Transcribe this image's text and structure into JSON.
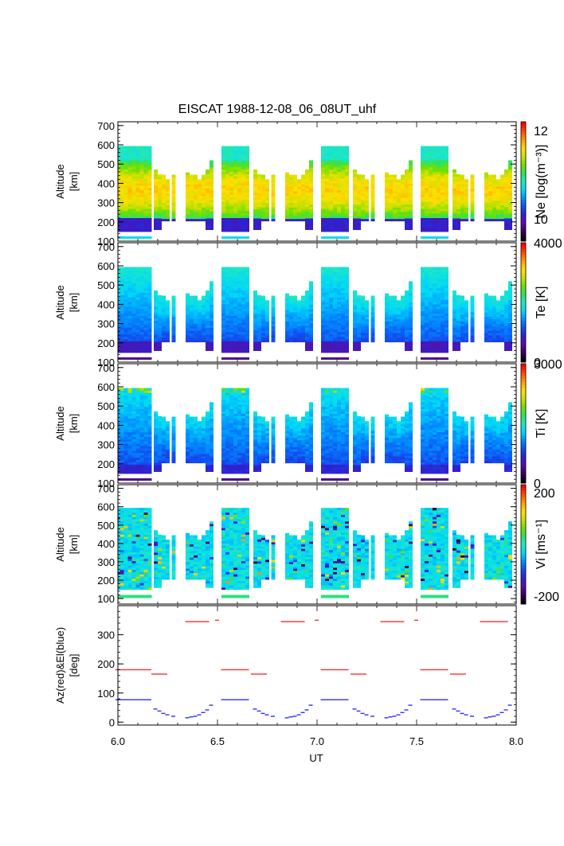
{
  "title": "EISCAT 1988-12-08_06_08UT_uhf",
  "xlabel": "UT",
  "x_ticks": [
    "6.0",
    "6.5",
    "7.0",
    "7.5",
    "8.0"
  ],
  "colors": {
    "colormap": [
      "#000000",
      "#3a0060",
      "#5a10a0",
      "#3020d0",
      "#1050f0",
      "#0090ff",
      "#00d8f8",
      "#20e8c0",
      "#30e060",
      "#70e000",
      "#c8e000",
      "#ffe000",
      "#ffa000",
      "#ff5000",
      "#ff0000"
    ],
    "az": "#ff3030",
    "el": "#3030ff"
  },
  "chart_data": [
    {
      "type": "heatmap",
      "ylabel_line1": "Altitude",
      "ylabel_line2": "[km]",
      "y_ticks": [
        "100",
        "200",
        "300",
        "400",
        "500",
        "600",
        "700"
      ],
      "ylim": [
        100,
        720
      ],
      "xlim": [
        6.0,
        8.0
      ],
      "colorbar": {
        "label": "Ne [log(m⁻³)]",
        "ticks": [
          "10",
          "12"
        ],
        "range": [
          9.5,
          12.2
        ]
      },
      "quantity": "Ne"
    },
    {
      "type": "heatmap",
      "ylabel_line1": "Altitude",
      "ylabel_line2": "[km]",
      "y_ticks": [
        "100",
        "200",
        "300",
        "400",
        "500",
        "600",
        "700"
      ],
      "ylim": [
        100,
        720
      ],
      "xlim": [
        6.0,
        8.0
      ],
      "colorbar": {
        "label": "Te [K]",
        "ticks": [
          "0",
          "4000"
        ],
        "range": [
          0,
          4000
        ]
      },
      "quantity": "Te"
    },
    {
      "type": "heatmap",
      "ylabel_line1": "Altitude",
      "ylabel_line2": "[km]",
      "y_ticks": [
        "100",
        "200",
        "300",
        "400",
        "500",
        "600",
        "700"
      ],
      "ylim": [
        100,
        720
      ],
      "xlim": [
        6.0,
        8.0
      ],
      "colorbar": {
        "label": "Ti [K]",
        "ticks": [
          "0",
          "3000"
        ],
        "range": [
          0,
          3000
        ]
      },
      "quantity": "Ti"
    },
    {
      "type": "heatmap",
      "ylabel_line1": "Altitude",
      "ylabel_line2": "[km]",
      "y_ticks": [
        "100",
        "200",
        "300",
        "400",
        "500",
        "600",
        "700"
      ],
      "ylim": [
        70,
        720
      ],
      "xlim": [
        6.0,
        8.0
      ],
      "colorbar": {
        "label": "Vi [ms⁻¹]",
        "ticks": [
          "-200",
          "200"
        ],
        "range": [
          -230,
          230
        ]
      },
      "quantity": "Vi"
    },
    {
      "type": "scatter",
      "ylabel_line1": "Az(red)&El(blue)",
      "ylabel_line2": "[deg]",
      "y_ticks": [
        "0",
        "100",
        "200",
        "300"
      ],
      "ylim": [
        -10,
        400
      ],
      "xlim": [
        6.0,
        8.0
      ],
      "series": [
        {
          "name": "Az",
          "points": [
            [
              6.0,
              180
            ],
            [
              6.02,
              180
            ],
            [
              6.04,
              180
            ],
            [
              6.06,
              180
            ],
            [
              6.08,
              180
            ],
            [
              6.1,
              180
            ],
            [
              6.12,
              180
            ],
            [
              6.14,
              180
            ],
            [
              6.16,
              180
            ],
            [
              6.18,
              165
            ],
            [
              6.2,
              165
            ],
            [
              6.22,
              165
            ],
            [
              6.24,
              165
            ],
            [
              6.35,
              345
            ],
            [
              6.37,
              345
            ],
            [
              6.39,
              345
            ],
            [
              6.41,
              345
            ],
            [
              6.43,
              345
            ],
            [
              6.45,
              345
            ],
            [
              6.5,
              350
            ],
            [
              6.53,
              180
            ],
            [
              6.55,
              180
            ],
            [
              6.57,
              180
            ],
            [
              6.59,
              180
            ],
            [
              6.61,
              180
            ],
            [
              6.63,
              180
            ],
            [
              6.65,
              180
            ],
            [
              6.68,
              165
            ],
            [
              6.7,
              165
            ],
            [
              6.72,
              165
            ],
            [
              6.74,
              165
            ],
            [
              6.83,
              345
            ],
            [
              6.85,
              345
            ],
            [
              6.87,
              345
            ],
            [
              6.89,
              345
            ],
            [
              6.91,
              345
            ],
            [
              6.93,
              345
            ],
            [
              7.0,
              350
            ],
            [
              7.03,
              180
            ],
            [
              7.05,
              180
            ],
            [
              7.07,
              180
            ],
            [
              7.09,
              180
            ],
            [
              7.11,
              180
            ],
            [
              7.13,
              180
            ],
            [
              7.15,
              180
            ],
            [
              7.18,
              165
            ],
            [
              7.2,
              165
            ],
            [
              7.22,
              165
            ],
            [
              7.24,
              165
            ],
            [
              7.33,
              345
            ],
            [
              7.35,
              345
            ],
            [
              7.37,
              345
            ],
            [
              7.39,
              345
            ],
            [
              7.41,
              345
            ],
            [
              7.43,
              345
            ],
            [
              7.5,
              350
            ],
            [
              7.53,
              180
            ],
            [
              7.55,
              180
            ],
            [
              7.57,
              180
            ],
            [
              7.59,
              180
            ],
            [
              7.61,
              180
            ],
            [
              7.63,
              180
            ],
            [
              7.65,
              180
            ],
            [
              7.68,
              165
            ],
            [
              7.7,
              165
            ],
            [
              7.72,
              165
            ],
            [
              7.74,
              165
            ],
            [
              7.83,
              345
            ],
            [
              7.85,
              345
            ],
            [
              7.87,
              345
            ],
            [
              7.89,
              345
            ],
            [
              7.91,
              345
            ],
            [
              7.93,
              345
            ],
            [
              7.95,
              345
            ]
          ]
        },
        {
          "name": "El",
          "points": [
            [
              6.0,
              77
            ],
            [
              6.02,
              77
            ],
            [
              6.04,
              77
            ],
            [
              6.06,
              77
            ],
            [
              6.08,
              77
            ],
            [
              6.1,
              77
            ],
            [
              6.12,
              77
            ],
            [
              6.14,
              77
            ],
            [
              6.16,
              77
            ],
            [
              6.19,
              45
            ],
            [
              6.21,
              38
            ],
            [
              6.23,
              30
            ],
            [
              6.25,
              25
            ],
            [
              6.28,
              20
            ],
            [
              6.35,
              15
            ],
            [
              6.37,
              18
            ],
            [
              6.39,
              20
            ],
            [
              6.41,
              25
            ],
            [
              6.43,
              33
            ],
            [
              6.45,
              42
            ],
            [
              6.47,
              58
            ],
            [
              6.53,
              77
            ],
            [
              6.55,
              77
            ],
            [
              6.57,
              77
            ],
            [
              6.59,
              77
            ],
            [
              6.61,
              77
            ],
            [
              6.63,
              77
            ],
            [
              6.65,
              77
            ],
            [
              6.69,
              45
            ],
            [
              6.71,
              38
            ],
            [
              6.73,
              30
            ],
            [
              6.75,
              25
            ],
            [
              6.78,
              20
            ],
            [
              6.85,
              15
            ],
            [
              6.87,
              18
            ],
            [
              6.89,
              20
            ],
            [
              6.91,
              25
            ],
            [
              6.93,
              33
            ],
            [
              6.95,
              42
            ],
            [
              6.97,
              58
            ],
            [
              7.03,
              77
            ],
            [
              7.05,
              77
            ],
            [
              7.07,
              77
            ],
            [
              7.09,
              77
            ],
            [
              7.11,
              77
            ],
            [
              7.13,
              77
            ],
            [
              7.15,
              77
            ],
            [
              7.19,
              45
            ],
            [
              7.21,
              38
            ],
            [
              7.23,
              30
            ],
            [
              7.25,
              25
            ],
            [
              7.28,
              20
            ],
            [
              7.35,
              15
            ],
            [
              7.37,
              18
            ],
            [
              7.39,
              20
            ],
            [
              7.41,
              25
            ],
            [
              7.43,
              33
            ],
            [
              7.45,
              42
            ],
            [
              7.47,
              58
            ],
            [
              7.53,
              77
            ],
            [
              7.55,
              77
            ],
            [
              7.57,
              77
            ],
            [
              7.59,
              77
            ],
            [
              7.61,
              77
            ],
            [
              7.63,
              77
            ],
            [
              7.65,
              77
            ],
            [
              7.69,
              45
            ],
            [
              7.71,
              38
            ],
            [
              7.73,
              30
            ],
            [
              7.75,
              25
            ],
            [
              7.78,
              20
            ],
            [
              7.85,
              15
            ],
            [
              7.87,
              18
            ],
            [
              7.89,
              20
            ],
            [
              7.91,
              25
            ],
            [
              7.93,
              33
            ],
            [
              7.95,
              42
            ],
            [
              7.97,
              58
            ]
          ]
        }
      ]
    }
  ]
}
